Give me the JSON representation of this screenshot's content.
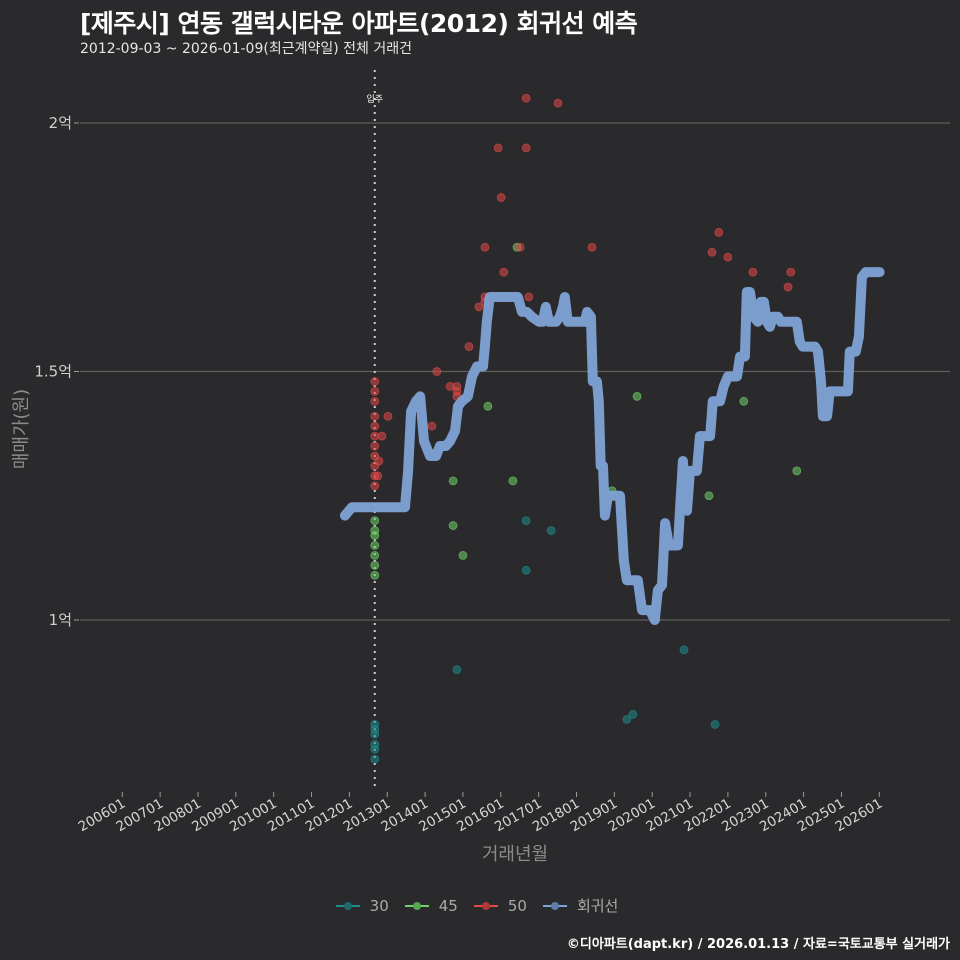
{
  "header": {
    "title": "[제주시] 연동 갤럭시타운 아파트(2012) 회귀선 예측",
    "subtitle": "2012-09-03 ~ 2026-01-09(최근계약일) 전체 거래건"
  },
  "footer": {
    "credit": "©디아파트(dapt.kr) / 2026.01.13 / 자료=국토교통부 실거래가"
  },
  "colors": {
    "background": "#2a292b",
    "grid": "#5e5e5e",
    "s30": "#1e8c8c",
    "s45": "#6fd06a",
    "s50": "#e04848",
    "regression": "#7ea3d6"
  },
  "chart_data": {
    "type": "scatter",
    "title": "[제주시] 연동 갤럭시타운 아파트(2012) 회귀선 예측",
    "subtitle": "2012-09-03 ~ 2026-01-09(최근계약일) 전체 거래건",
    "xlabel": "거래년월",
    "ylabel": "매매가(원)",
    "x_ticks": [
      "200601",
      "200701",
      "200801",
      "200901",
      "201001",
      "201101",
      "201201",
      "201301",
      "201401",
      "201501",
      "201601",
      "201701",
      "201801",
      "201901",
      "202001",
      "202101",
      "202201",
      "202301",
      "202401",
      "202501",
      "202601"
    ],
    "y_ticks": [
      {
        "value": 1.0,
        "label": "1억"
      },
      {
        "value": 1.5,
        "label": "1.5억"
      },
      {
        "value": 2.0,
        "label": "2억"
      }
    ],
    "xlim": [
      2004.83,
      2028.1
    ],
    "ylim": [
      0.655,
      2.105
    ],
    "grid": "horizontal",
    "annotation": {
      "x": 2012.67,
      "label": "입주",
      "style": "dotted-vertical"
    },
    "legend": [
      "30",
      "45",
      "50",
      "회귀선"
    ],
    "legend_position": "bottom",
    "units": "억원 (x = 소수 연도)",
    "series": [
      {
        "name": "30",
        "kind": "points",
        "color_key": "s30",
        "points": [
          [
            2012.67,
            0.79
          ],
          [
            2012.67,
            0.78
          ],
          [
            2012.67,
            0.77
          ],
          [
            2012.67,
            0.75
          ],
          [
            2012.67,
            0.74
          ],
          [
            2012.67,
            0.72
          ],
          [
            2014.84,
            0.9
          ],
          [
            2016.67,
            1.2
          ],
          [
            2016.67,
            1.1
          ],
          [
            2017.33,
            1.18
          ],
          [
            2019.33,
            0.8
          ],
          [
            2019.49,
            0.81
          ],
          [
            2020.84,
            0.94
          ],
          [
            2021.66,
            0.79
          ]
        ]
      },
      {
        "name": "45",
        "kind": "points",
        "color_key": "s45",
        "points": [
          [
            2012.67,
            1.2
          ],
          [
            2012.67,
            1.18
          ],
          [
            2012.67,
            1.17
          ],
          [
            2012.67,
            1.15
          ],
          [
            2012.67,
            1.13
          ],
          [
            2012.67,
            1.11
          ],
          [
            2012.67,
            1.09
          ],
          [
            2014.74,
            1.28
          ],
          [
            2014.74,
            1.19
          ],
          [
            2015.0,
            1.13
          ],
          [
            2015.66,
            1.43
          ],
          [
            2016.32,
            1.28
          ],
          [
            2016.43,
            1.75
          ],
          [
            2018.94,
            1.26
          ],
          [
            2019.6,
            1.45
          ],
          [
            2021.5,
            1.25
          ],
          [
            2022.42,
            1.44
          ],
          [
            2023.82,
            1.3
          ]
        ]
      },
      {
        "name": "50",
        "kind": "points",
        "color_key": "s50",
        "points": [
          [
            2012.67,
            1.48
          ],
          [
            2012.67,
            1.46
          ],
          [
            2012.67,
            1.44
          ],
          [
            2012.67,
            1.41
          ],
          [
            2012.67,
            1.39
          ],
          [
            2012.67,
            1.37
          ],
          [
            2012.67,
            1.35
          ],
          [
            2012.67,
            1.33
          ],
          [
            2012.67,
            1.31
          ],
          [
            2012.67,
            1.29
          ],
          [
            2012.67,
            1.27
          ],
          [
            2013.02,
            1.41
          ],
          [
            2012.86,
            1.37
          ],
          [
            2012.78,
            1.32
          ],
          [
            2012.75,
            1.29
          ],
          [
            2014.31,
            1.5
          ],
          [
            2014.18,
            1.39
          ],
          [
            2014.66,
            1.47
          ],
          [
            2014.84,
            1.47
          ],
          [
            2014.84,
            1.46
          ],
          [
            2014.84,
            1.45
          ],
          [
            2015.16,
            1.55
          ],
          [
            2015.42,
            1.63
          ],
          [
            2015.58,
            1.64
          ],
          [
            2015.58,
            1.65
          ],
          [
            2015.58,
            1.75
          ],
          [
            2015.93,
            1.95
          ],
          [
            2016.01,
            1.85
          ],
          [
            2016.08,
            1.7
          ],
          [
            2016.51,
            1.75
          ],
          [
            2016.67,
            2.05
          ],
          [
            2016.67,
            1.95
          ],
          [
            2016.74,
            1.65
          ],
          [
            2017.51,
            2.04
          ],
          [
            2018.41,
            1.75
          ],
          [
            2021.58,
            1.74
          ],
          [
            2021.76,
            1.78
          ],
          [
            2022.0,
            1.73
          ],
          [
            2022.66,
            1.7
          ],
          [
            2023.59,
            1.67
          ],
          [
            2023.66,
            1.7
          ]
        ]
      },
      {
        "name": "회귀선",
        "kind": "line",
        "color_key": "regression",
        "points": [
          [
            2011.88,
            1.21
          ],
          [
            2012.07,
            1.227
          ],
          [
            2013.47,
            1.227
          ],
          [
            2013.55,
            1.3
          ],
          [
            2013.63,
            1.42
          ],
          [
            2013.76,
            1.44
          ],
          [
            2013.87,
            1.45
          ],
          [
            2013.97,
            1.36
          ],
          [
            2014.13,
            1.33
          ],
          [
            2014.29,
            1.33
          ],
          [
            2014.39,
            1.35
          ],
          [
            2014.55,
            1.35
          ],
          [
            2014.66,
            1.36
          ],
          [
            2014.79,
            1.38
          ],
          [
            2014.87,
            1.43
          ],
          [
            2014.97,
            1.44
          ],
          [
            2015.13,
            1.45
          ],
          [
            2015.24,
            1.49
          ],
          [
            2015.37,
            1.51
          ],
          [
            2015.53,
            1.51
          ],
          [
            2015.58,
            1.55
          ],
          [
            2015.63,
            1.6
          ],
          [
            2015.71,
            1.65
          ],
          [
            2015.98,
            1.65
          ],
          [
            2016.29,
            1.65
          ],
          [
            2016.45,
            1.65
          ],
          [
            2016.56,
            1.62
          ],
          [
            2016.69,
            1.62
          ],
          [
            2016.82,
            1.61
          ],
          [
            2017.01,
            1.6
          ],
          [
            2017.11,
            1.6
          ],
          [
            2017.19,
            1.63
          ],
          [
            2017.27,
            1.6
          ],
          [
            2017.46,
            1.6
          ],
          [
            2017.56,
            1.61
          ],
          [
            2017.64,
            1.63
          ],
          [
            2017.69,
            1.65
          ],
          [
            2017.77,
            1.6
          ],
          [
            2017.96,
            1.6
          ],
          [
            2018.22,
            1.6
          ],
          [
            2018.28,
            1.62
          ],
          [
            2018.38,
            1.61
          ],
          [
            2018.43,
            1.48
          ],
          [
            2018.54,
            1.48
          ],
          [
            2018.59,
            1.44
          ],
          [
            2018.64,
            1.31
          ],
          [
            2018.7,
            1.31
          ],
          [
            2018.75,
            1.21
          ],
          [
            2018.83,
            1.25
          ],
          [
            2019.15,
            1.25
          ],
          [
            2019.25,
            1.12
          ],
          [
            2019.33,
            1.08
          ],
          [
            2019.62,
            1.08
          ],
          [
            2019.73,
            1.02
          ],
          [
            2019.94,
            1.02
          ],
          [
            2020.07,
            1.0
          ],
          [
            2020.15,
            1.06
          ],
          [
            2020.26,
            1.07
          ],
          [
            2020.34,
            1.195
          ],
          [
            2020.44,
            1.15
          ],
          [
            2020.68,
            1.15
          ],
          [
            2020.81,
            1.32
          ],
          [
            2020.92,
            1.22
          ],
          [
            2021.0,
            1.3
          ],
          [
            2021.18,
            1.3
          ],
          [
            2021.26,
            1.37
          ],
          [
            2021.53,
            1.37
          ],
          [
            2021.6,
            1.44
          ],
          [
            2021.79,
            1.44
          ],
          [
            2021.89,
            1.47
          ],
          [
            2022.0,
            1.49
          ],
          [
            2022.24,
            1.49
          ],
          [
            2022.32,
            1.53
          ],
          [
            2022.45,
            1.53
          ],
          [
            2022.5,
            1.66
          ],
          [
            2022.58,
            1.66
          ],
          [
            2022.69,
            1.61
          ],
          [
            2022.79,
            1.6
          ],
          [
            2022.87,
            1.64
          ],
          [
            2022.95,
            1.64
          ],
          [
            2023.03,
            1.6
          ],
          [
            2023.11,
            1.59
          ],
          [
            2023.19,
            1.61
          ],
          [
            2023.32,
            1.61
          ],
          [
            2023.4,
            1.6
          ],
          [
            2023.82,
            1.6
          ],
          [
            2023.9,
            1.56
          ],
          [
            2023.98,
            1.55
          ],
          [
            2024.3,
            1.55
          ],
          [
            2024.38,
            1.54
          ],
          [
            2024.46,
            1.48
          ],
          [
            2024.51,
            1.41
          ],
          [
            2024.62,
            1.41
          ],
          [
            2024.69,
            1.46
          ],
          [
            2025.17,
            1.46
          ],
          [
            2025.22,
            1.54
          ],
          [
            2025.38,
            1.54
          ],
          [
            2025.46,
            1.57
          ],
          [
            2025.54,
            1.69
          ],
          [
            2025.64,
            1.7
          ],
          [
            2026.01,
            1.7
          ]
        ]
      }
    ]
  },
  "axes": {
    "xlabel": "거래년월",
    "ylabel": "매매가(원)",
    "annotation_label": "입주"
  },
  "legend": {
    "items": [
      {
        "label": "30",
        "color": "#1e8c8c"
      },
      {
        "label": "45",
        "color": "#6fd06a"
      },
      {
        "label": "50",
        "color": "#e04848"
      },
      {
        "label": "회귀선",
        "color": "#7ea3d6"
      }
    ]
  }
}
